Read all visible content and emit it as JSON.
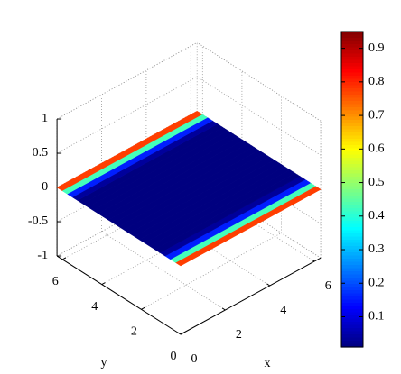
{
  "chart_data": {
    "type": "surface",
    "colormap": "jet",
    "y": [
      0,
      0.26,
      0.52,
      0.79,
      1.05,
      1.31,
      1.57,
      1.83,
      2.09,
      2.36,
      2.62,
      2.88,
      3.14,
      3.4,
      3.67,
      3.93,
      4.19,
      4.45,
      4.71,
      4.97,
      5.24,
      5.5,
      5.76,
      6.02,
      6.28
    ],
    "values": [
      0.95,
      0.6,
      0.25,
      0.06,
      0.01,
      0.01,
      0.01,
      0.01,
      0.01,
      0.01,
      0.01,
      0.01,
      0.01,
      0.01,
      0.01,
      0.01,
      0.01,
      0.01,
      0.01,
      0.01,
      0.01,
      0.06,
      0.25,
      0.6,
      0.95
    ],
    "xlim": [
      0,
      6.28
    ],
    "ylim": [
      0,
      6.28
    ],
    "zlim": [
      -1,
      1
    ],
    "xticks": [
      0,
      2,
      4,
      6
    ],
    "yticks": [
      0,
      2,
      4,
      6
    ],
    "zticks": [
      -1,
      -0.5,
      0,
      0.5,
      1
    ],
    "xlabel": "x",
    "ylabel": "y",
    "grid": true,
    "colorbar": {
      "lim": [
        0.01,
        0.95
      ],
      "ticks": [
        0.1,
        0.2,
        0.3,
        0.4,
        0.5,
        0.6,
        0.7,
        0.8,
        0.9
      ]
    }
  }
}
